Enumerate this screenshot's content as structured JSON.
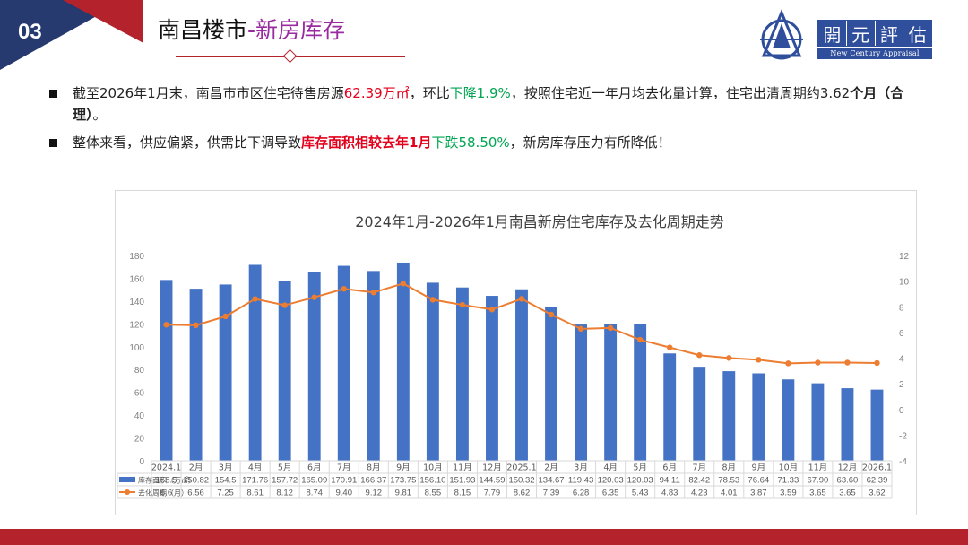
{
  "section_number": "03",
  "page_title": {
    "part1": "南昌楼市",
    "part2": "-新房库存"
  },
  "logo": {
    "chars": [
      "開",
      "元",
      "評",
      "估"
    ],
    "english": "New Century Appraisal"
  },
  "bullets": [
    {
      "t1": "截至2026年1月末，南昌市市区住宅待售房源",
      "v1": "62.39万㎡",
      "t2": "，环比",
      "v2": "下降1.9%",
      "t3": "，按照住宅近一年月均去化量计算，住宅出清周期约3.62",
      "v3": "个月（合理）",
      "t4": "。"
    },
    {
      "t1": "整体来看，供应偏紧，供需比下调导致",
      "v1": "库存面积相较去年1月",
      "v2": "下跌58.50%",
      "t2": "，新房库存压力有所降低！"
    }
  ],
  "chart_data": {
    "type": "bar+line",
    "title": "2024年1月-2026年1月南昌新房住宅库存及去化周期走势",
    "categories": [
      "2024.1",
      "2月",
      "3月",
      "4月",
      "5月",
      "6月",
      "7月",
      "8月",
      "9月",
      "10月",
      "11月",
      "12月",
      "2025.1",
      "2月",
      "3月",
      "4月",
      "5月",
      "6月",
      "7月",
      "8月",
      "9月",
      "10月",
      "11月",
      "12月",
      "2026.1"
    ],
    "series": [
      {
        "name": "库存面积（万㎡）",
        "type": "bar",
        "axis": "left",
        "color": "#4472c4",
        "values": [
          158.5,
          150.82,
          154.5,
          171.76,
          157.72,
          165.09,
          170.91,
          166.37,
          173.75,
          156.1,
          151.93,
          144.59,
          150.32,
          134.67,
          119.43,
          120.03,
          120.03,
          94.11,
          82.42,
          78.53,
          76.64,
          71.33,
          67.9,
          63.6,
          62.39
        ],
        "labels": [
          "158.5",
          "150.82",
          "154.5",
          "171.76",
          "157.72",
          "165.09",
          "170.91",
          "166.37",
          "173.75",
          "156.10",
          "151.93",
          "144.59",
          "150.32",
          "134.67",
          "119.43",
          "120.03",
          "120.03",
          "94.11",
          "82.42",
          "78.53",
          "76.64",
          "71.33",
          "67.90",
          "63.60",
          "62.39"
        ]
      },
      {
        "name": "去化周期（月）",
        "type": "line",
        "axis": "right",
        "color": "#ed7d31",
        "values": [
          6.6,
          6.56,
          7.25,
          8.61,
          8.12,
          8.74,
          9.4,
          9.12,
          9.81,
          8.55,
          8.15,
          7.79,
          8.62,
          7.39,
          6.28,
          6.35,
          5.43,
          4.83,
          4.23,
          4.01,
          3.87,
          3.59,
          3.65,
          3.65,
          3.62
        ],
        "labels": [
          "6.6",
          "6.56",
          "7.25",
          "8.61",
          "8.12",
          "8.74",
          "9.40",
          "9.12",
          "9.81",
          "8.55",
          "8.15",
          "7.79",
          "8.62",
          "7.39",
          "6.28",
          "6.35",
          "5.43",
          "4.83",
          "4.23",
          "4.01",
          "3.87",
          "3.59",
          "3.65",
          "3.65",
          "3.62"
        ]
      }
    ],
    "y_left": {
      "min": 0,
      "max": 180,
      "ticks": [
        "0",
        "20",
        "40",
        "60",
        "80",
        "100",
        "120",
        "140",
        "160",
        "180"
      ]
    },
    "y_right": {
      "min": -4,
      "max": 12,
      "ticks": [
        "-4",
        "-2",
        "0",
        "2",
        "4",
        "6",
        "8",
        "10",
        "12"
      ]
    },
    "gridlines": false,
    "legend": "data-table"
  }
}
